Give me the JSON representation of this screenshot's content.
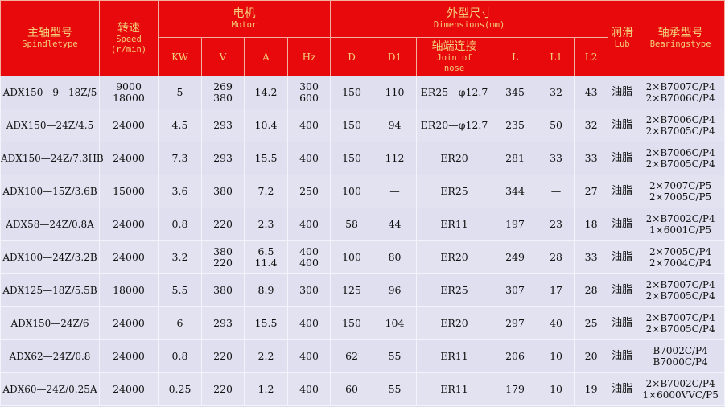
{
  "header": {
    "spindle": {
      "zh": "主轴型号",
      "en": "Spindletype"
    },
    "speed": {
      "zh": "转速",
      "en": "Speed",
      "unit": "(r/min)"
    },
    "motor": {
      "zh": "电机",
      "en": "Motor",
      "cols": [
        "KW",
        "V",
        "A",
        "Hz"
      ]
    },
    "dimensions": {
      "zh": "外型尺寸",
      "en": "Dimensions(mm)",
      "cols": [
        "D",
        "D1"
      ],
      "joint": {
        "zh": "轴端连接",
        "en1": "Jointof",
        "en2": "nose"
      },
      "cols2": [
        "L",
        "L1",
        "L2"
      ]
    },
    "lub": {
      "zh": "润滑",
      "en": "Lub"
    },
    "bearing": {
      "zh": "轴承型号",
      "en": "Bearingstype"
    }
  },
  "rows": [
    {
      "model": "ADX150—9—18Z/5",
      "speed": [
        "9000",
        "18000"
      ],
      "kw": "5",
      "v": [
        "269",
        "380"
      ],
      "a": [
        "14.2"
      ],
      "hz": [
        "300",
        "600"
      ],
      "d": "150",
      "d1": "110",
      "joint": "ER25—φ12.7",
      "l": "345",
      "l1": "32",
      "l2": "43",
      "lub": "油脂",
      "bearing": [
        "2×B7007C/P4",
        "2×B7006C/P4"
      ]
    },
    {
      "model": "ADX150—24Z/4.5",
      "speed": [
        "24000"
      ],
      "kw": "4.5",
      "v": [
        "293"
      ],
      "a": [
        "10.4"
      ],
      "hz": [
        "400"
      ],
      "d": "150",
      "d1": "94",
      "joint": "ER20—φ12.7",
      "l": "235",
      "l1": "50",
      "l2": "32",
      "lub": "油脂",
      "bearing": [
        "2×B7006C/P4",
        "2×B7005C/P4"
      ]
    },
    {
      "model": "ADX150—24Z/7.3HB",
      "speed": [
        "24000"
      ],
      "kw": "7.3",
      "v": [
        "293"
      ],
      "a": [
        "15.5"
      ],
      "hz": [
        "400"
      ],
      "d": "150",
      "d1": "112",
      "joint": "ER20",
      "l": "281",
      "l1": "33",
      "l2": "33",
      "lub": "油脂",
      "bearing": [
        "2×B7006C/P4",
        "2×B7005C/P4"
      ]
    },
    {
      "model": "ADX100—15Z/3.6B",
      "speed": [
        "15000"
      ],
      "kw": "3.6",
      "v": [
        "380"
      ],
      "a": [
        "7.2"
      ],
      "hz": [
        "250"
      ],
      "d": "100",
      "d1": "—",
      "joint": "ER25",
      "l": "344",
      "l1": "—",
      "l2": "27",
      "lub": "油脂",
      "bearing": [
        "2×7007C/P5",
        "2×7005C/P5"
      ]
    },
    {
      "model": "ADX58—24Z/0.8A",
      "speed": [
        "24000"
      ],
      "kw": "0.8",
      "v": [
        "220"
      ],
      "a": [
        "2.3"
      ],
      "hz": [
        "400"
      ],
      "d": "58",
      "d1": "44",
      "joint": "ER11",
      "l": "197",
      "l1": "23",
      "l2": "18",
      "lub": "油脂",
      "bearing": [
        "2×B7002C/P4",
        "1×6001C/P5"
      ]
    },
    {
      "model": "ADX100—24Z/3.2B",
      "speed": [
        "24000"
      ],
      "kw": "3.2",
      "v": [
        "380",
        "220"
      ],
      "a": [
        "6.5",
        "11.4"
      ],
      "hz": [
        "400",
        "400"
      ],
      "d": "100",
      "d1": "80",
      "joint": "ER20",
      "l": "249",
      "l1": "28",
      "l2": "33",
      "lub": "油脂",
      "bearing": [
        "2×7005C/P4",
        "2×7004C/P4"
      ]
    },
    {
      "model": "ADX125—18Z/5.5B",
      "speed": [
        "18000"
      ],
      "kw": "5.5",
      "v": [
        "380"
      ],
      "a": [
        "8.9"
      ],
      "hz": [
        "300"
      ],
      "d": "125",
      "d1": "96",
      "joint": "ER25",
      "l": "307",
      "l1": "17",
      "l2": "28",
      "lub": "油脂",
      "bearing": [
        "2×B7007C/P4",
        "2×B7005C/P4"
      ]
    },
    {
      "model": "ADX150—24Z/6",
      "speed": [
        "24000"
      ],
      "kw": "6",
      "v": [
        "293"
      ],
      "a": [
        "15.5"
      ],
      "hz": [
        "400"
      ],
      "d": "150",
      "d1": "104",
      "joint": "ER20",
      "l": "297",
      "l1": "40",
      "l2": "25",
      "lub": "油脂",
      "bearing": [
        "2×B7007C/P4",
        "2×B7005C/P4"
      ]
    },
    {
      "model": "ADX62—24Z/0.8",
      "speed": [
        "24000"
      ],
      "kw": "0.8",
      "v": [
        "220"
      ],
      "a": [
        "2.2"
      ],
      "hz": [
        "400"
      ],
      "d": "62",
      "d1": "55",
      "joint": "ER11",
      "l": "206",
      "l1": "10",
      "l2": "20",
      "lub": "油脂",
      "bearing": [
        "B7002C/P4",
        "B7000C/P4"
      ]
    },
    {
      "model": "ADX60—24Z/0.25A",
      "speed": [
        "24000"
      ],
      "kw": "0.25",
      "v": [
        "220"
      ],
      "a": [
        "1.2"
      ],
      "hz": [
        "400"
      ],
      "d": "60",
      "d1": "55",
      "joint": "ER11",
      "l": "179",
      "l1": "10",
      "l2": "19",
      "lub": "油脂",
      "bearing": [
        "2×B7002C/P4",
        "1×6000VVC/P5"
      ]
    }
  ],
  "colors": {
    "header_bg": "#e8090d",
    "header_text": "#f2cf7a",
    "row_bg": "#dfdff0"
  }
}
